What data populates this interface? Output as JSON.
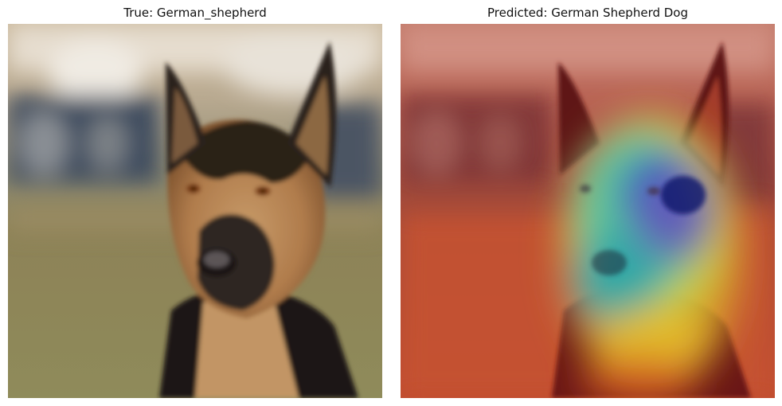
{
  "panels": [
    {
      "title": "True: German_shepherd"
    },
    {
      "title": "Predicted: German Shepherd Dog"
    }
  ]
}
